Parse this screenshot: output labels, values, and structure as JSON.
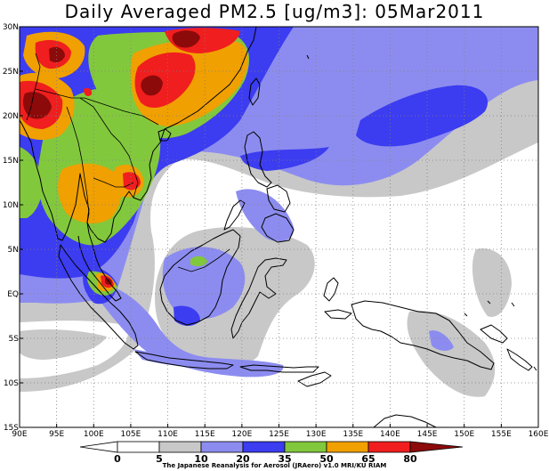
{
  "title": "Daily Averaged PM2.5 [ug/m3]: 05Mar2011",
  "credit": "The Japanese Reanalysis for Aerosol (JRAero) v1.0 MRI/KU RIAM",
  "map": {
    "lon_range": [
      90,
      160
    ],
    "lat_range": [
      -15,
      30
    ],
    "x_ticks": [
      "90E",
      "95E",
      "100E",
      "105E",
      "110E",
      "115E",
      "120E",
      "125E",
      "130E",
      "135E",
      "140E",
      "145E",
      "150E",
      "155E",
      "160E"
    ],
    "y_ticks": [
      "30N",
      "25N",
      "20N",
      "15N",
      "10N",
      "5N",
      "EQ",
      "5S",
      "10S",
      "15S"
    ],
    "grid": true
  },
  "colorbar": {
    "levels": [
      "0",
      "5",
      "10",
      "20",
      "35",
      "50",
      "65",
      "80"
    ],
    "colors": {
      "lt5": "#ffffff",
      "5to10": "#ffffff",
      "10to20": "#c8c8c8",
      "20to35": "#8c8cf0",
      "35to50": "#3c3cf0",
      "50to65": "#82c83c",
      "65to80": "#f0a000",
      "80to100": "#f01e1e",
      "gt100": "#8c0a0a"
    }
  }
}
